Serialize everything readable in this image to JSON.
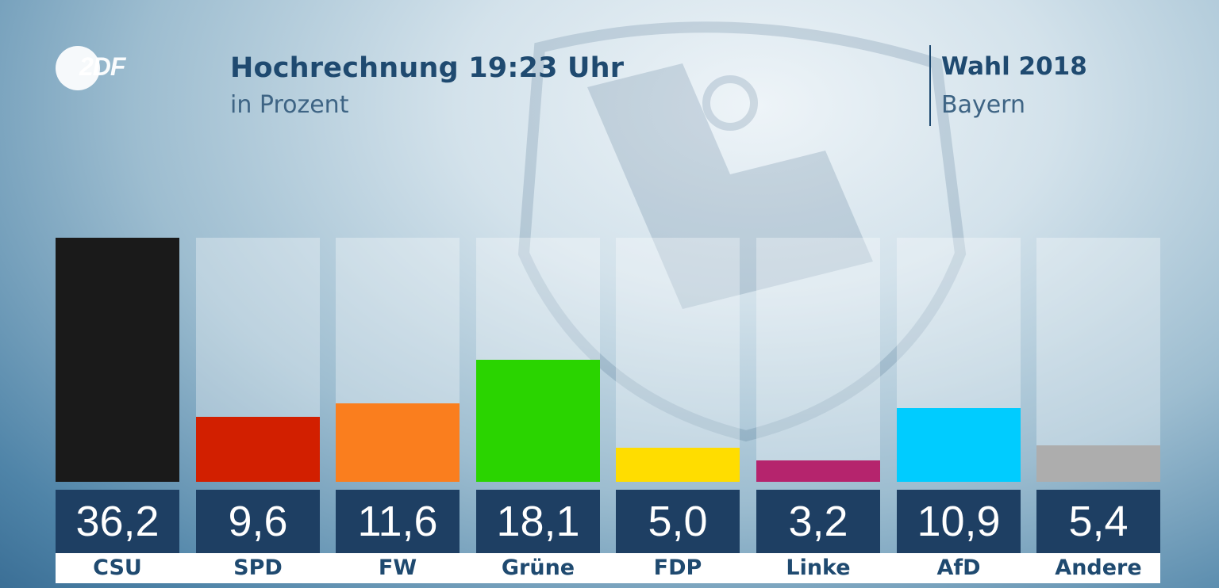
{
  "header": {
    "logo_text": "2DF",
    "title": "Hochrechnung 19:23 Uhr",
    "subtitle": "in Prozent",
    "election": "Wahl 2018",
    "region": "Bayern"
  },
  "chart_data": {
    "type": "bar",
    "title": "Hochrechnung 19:23 Uhr",
    "subtitle": "in Prozent",
    "categories": [
      "CSU",
      "SPD",
      "FW",
      "Grüne",
      "FDP",
      "Linke",
      "AfD",
      "Andere"
    ],
    "values": [
      36.2,
      9.6,
      11.6,
      18.1,
      5.0,
      3.2,
      10.9,
      5.4
    ],
    "value_labels": [
      "36,2",
      "9,6",
      "11,6",
      "18,1",
      "5,0",
      "3,2",
      "10,9",
      "5,4"
    ],
    "colors": [
      "#1a1a1a",
      "#d21f00",
      "#fa7e1e",
      "#2ad400",
      "#ffdd00",
      "#b5246d",
      "#00ccff",
      "#adadad"
    ],
    "ylim": [
      0,
      36.2
    ],
    "xlabel": "",
    "ylabel": "",
    "grid": false,
    "legend": "none"
  }
}
